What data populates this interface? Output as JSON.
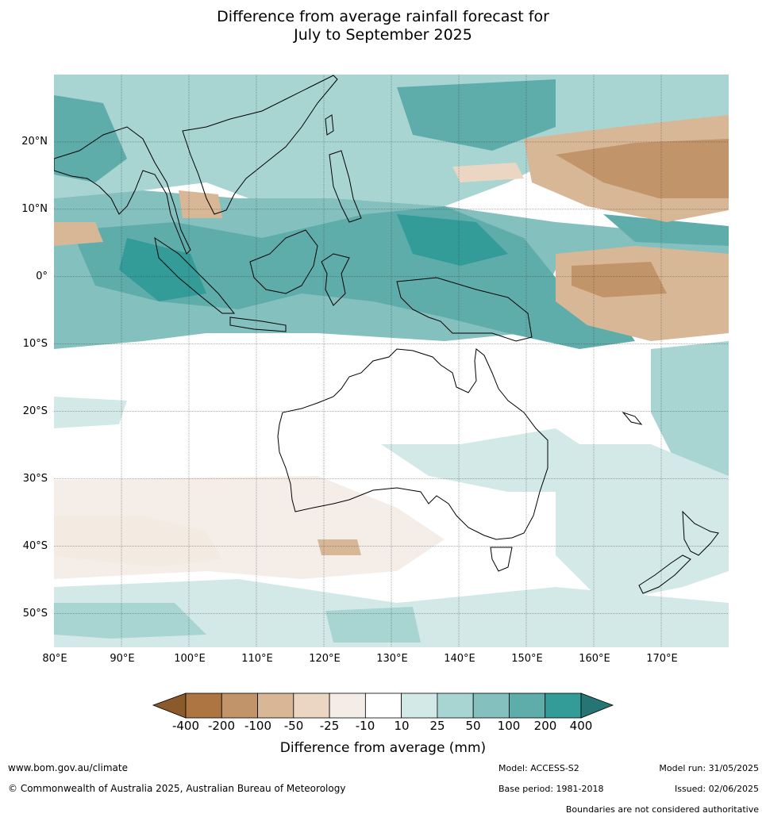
{
  "title": {
    "line1": "Difference from average rainfall forecast for",
    "line2": "July to September 2025"
  },
  "map": {
    "lon_range": [
      80,
      180
    ],
    "lat_range": [
      -55,
      30
    ],
    "lat_ticks": [
      "20°N",
      "10°N",
      "0°",
      "10°S",
      "20°S",
      "30°S",
      "40°S",
      "50°S"
    ],
    "lon_ticks": [
      "80°E",
      "90°E",
      "100°E",
      "110°E",
      "120°E",
      "130°E",
      "140°E",
      "150°E",
      "160°E",
      "170°E"
    ]
  },
  "legend": {
    "title": "Difference from average (mm)",
    "labels": [
      "-400",
      "-200",
      "-100",
      "-50",
      "-25",
      "-10",
      "10",
      "25",
      "50",
      "100",
      "200",
      "400"
    ],
    "colors": [
      "#8b5a2b",
      "#ad7541",
      "#c2946a",
      "#d8b796",
      "#ead6c3",
      "#f4ece6",
      "#ffffff",
      "#d3e9e8",
      "#a8d4d2",
      "#84c0be",
      "#5eadab",
      "#339b98",
      "#267473"
    ]
  },
  "footer": {
    "website": "www.bom.gov.au/climate",
    "copyright": "© Commonwealth of Australia 2025, Australian Bureau of Meteorology",
    "model": "Model: ACCESS-S2",
    "base_period": "Base period: 1981-2018",
    "model_run": "Model run: 31/05/2025",
    "issued": "Issued: 02/06/2025",
    "disclaimer": "Boundaries are not considered authoritative"
  }
}
